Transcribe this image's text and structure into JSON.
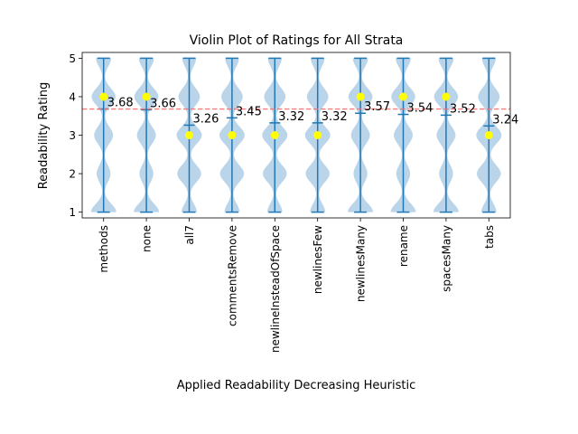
{
  "chart_data": {
    "type": "violin",
    "title": "Violin Plot of Ratings for All Strata",
    "xlabel": "Applied Readability Decreasing Heuristic",
    "ylabel": "Readability Rating",
    "ylim": [
      0.85,
      5.15
    ],
    "yticks": [
      1,
      2,
      3,
      4,
      5
    ],
    "grid": false,
    "categories": [
      "methods",
      "none",
      "all7",
      "commentsRemove",
      "newlineInsteadOfSpace",
      "newlinesFew",
      "newlinesMany",
      "rename",
      "spacesMany",
      "tabs"
    ],
    "min": [
      1,
      1,
      1,
      1,
      1,
      1,
      1,
      1,
      1,
      1
    ],
    "max": [
      5,
      5,
      5,
      5,
      5,
      5,
      5,
      5,
      5,
      5
    ],
    "means": [
      3.68,
      3.66,
      3.26,
      3.45,
      3.32,
      3.32,
      3.57,
      3.54,
      3.52,
      3.24
    ],
    "mean_labels": [
      "3.68",
      "3.66",
      "3.26",
      "3.45",
      "3.32",
      "3.32",
      "3.57",
      "3.54",
      "3.52",
      "3.24"
    ],
    "medians": [
      4,
      4,
      3,
      3,
      3,
      3,
      4,
      4,
      4,
      3
    ],
    "reference_line": 3.68,
    "colors": {
      "violin_fill": "#b3d0e8",
      "whisker": "#1f77b4",
      "median_dot": "#ffff00",
      "reference_line": "#ff6b6b"
    }
  }
}
